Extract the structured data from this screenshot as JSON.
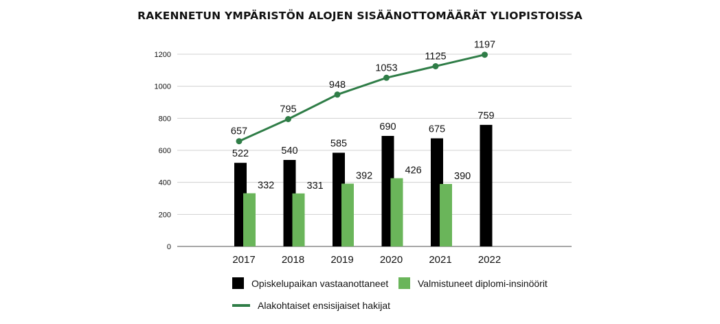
{
  "chart_data": {
    "type": "bar",
    "title": "RAKENNETUN YMPÄRISTÖN ALOJEN SISÄÄNOTTOMÄÄRÄT YLIOPISTOISSA",
    "categories": [
      "2017",
      "2018",
      "2019",
      "2020",
      "2021",
      "2022"
    ],
    "ylim": [
      0,
      1200
    ],
    "yticks": [
      0,
      200,
      400,
      600,
      800,
      1000,
      1200
    ],
    "grid": true,
    "legend_position": "bottom",
    "series": [
      {
        "name": "Opiskelupaikan vastaanottaneet",
        "kind": "bar",
        "color": "#000000",
        "values": [
          522,
          540,
          585,
          690,
          675,
          759
        ]
      },
      {
        "name": "Valmistuneet diplomi-insinöörit",
        "kind": "bar",
        "color": "#6ab55a",
        "values": [
          332,
          331,
          392,
          426,
          390,
          null
        ]
      },
      {
        "name": "Alakohtaiset ensisijaiset hakijat",
        "kind": "line",
        "color": "#2f7d47",
        "values": [
          657,
          795,
          948,
          1053,
          1125,
          1197
        ]
      }
    ]
  }
}
